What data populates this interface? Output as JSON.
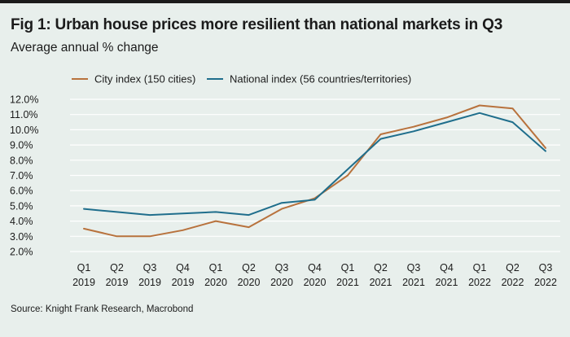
{
  "title": "Fig 1: Urban house prices more resilient than national markets in Q3",
  "subtitle": "Average annual % change",
  "source": "Source: Knight Frank Research, Macrobond",
  "colors": {
    "city": "#b8723d",
    "national": "#1f6e8c",
    "grid": "#ffffff",
    "background": "#e8efec"
  },
  "chart_data": {
    "type": "line",
    "title": "Fig 1: Urban house prices more resilient than national markets in Q3",
    "ylabel": "Average annual % change",
    "ylim": [
      2.0,
      12.0
    ],
    "yticks": [
      "12.0%",
      "11.0%",
      "10.0%",
      "9.0%",
      "8.0%",
      "7.0%",
      "6.0%",
      "5.0%",
      "4.0%",
      "3.0%",
      "2.0%"
    ],
    "ytick_values": [
      12,
      11,
      10,
      9,
      8,
      7,
      6,
      5,
      4,
      3,
      2
    ],
    "categories": [
      {
        "q": "Q1",
        "y": "2019"
      },
      {
        "q": "Q2",
        "y": "2019"
      },
      {
        "q": "Q3",
        "y": "2019"
      },
      {
        "q": "Q4",
        "y": "2019"
      },
      {
        "q": "Q1",
        "y": "2020"
      },
      {
        "q": "Q2",
        "y": "2020"
      },
      {
        "q": "Q3",
        "y": "2020"
      },
      {
        "q": "Q4",
        "y": "2020"
      },
      {
        "q": "Q1",
        "y": "2021"
      },
      {
        "q": "Q2",
        "y": "2021"
      },
      {
        "q": "Q3",
        "y": "2021"
      },
      {
        "q": "Q4",
        "y": "2021"
      },
      {
        "q": "Q1",
        "y": "2022"
      },
      {
        "q": "Q2",
        "y": "2022"
      },
      {
        "q": "Q3",
        "y": "2022"
      }
    ],
    "grid": "horizontal",
    "legend": "top",
    "series": [
      {
        "name": "City index (150 cities)",
        "color": "#b8723d",
        "values": [
          3.5,
          3.0,
          3.0,
          3.4,
          4.0,
          3.6,
          4.8,
          5.5,
          7.0,
          9.7,
          10.2,
          10.8,
          11.6,
          11.4,
          8.8
        ]
      },
      {
        "name": "National index (56 countries/territories)",
        "color": "#1f6e8c",
        "values": [
          4.8,
          4.6,
          4.4,
          4.5,
          4.6,
          4.4,
          5.2,
          5.4,
          7.4,
          9.4,
          9.9,
          10.5,
          11.1,
          10.5,
          8.6
        ]
      }
    ]
  }
}
